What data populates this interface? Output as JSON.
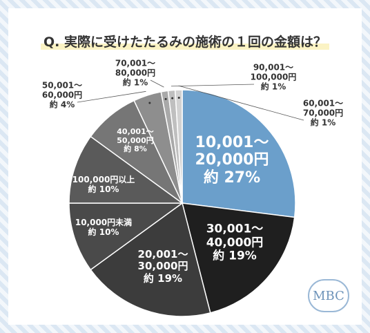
{
  "chart_data": {
    "type": "pie",
    "title": "Q. 実際に受けたたるみの施術の１回の金額は？",
    "categories": [
      "10,001～\n20,000円",
      "30,001～\n40,000円",
      "20,001～\n30,000円",
      "10,000円未満",
      "100,000円以上",
      "40,001～\n50,000円",
      "50,001～\n60,000円",
      "70,001～\n80,000円",
      "90,001～\n100,000円",
      "60,001～\n70,000円"
    ],
    "values": [
      27,
      19,
      19,
      10,
      10,
      8,
      4,
      1,
      1,
      1
    ],
    "value_labels": [
      "約 27%",
      "約 19%",
      "約 19%",
      "約 10%",
      "約 10%",
      "約 8%",
      "約 4%",
      "約 1%",
      "約 1%",
      "約 1%"
    ],
    "colors": [
      "#6b9fcb",
      "#1f1f1f",
      "#3c3c3c",
      "#4a4a4a",
      "#5a5a5a",
      "#767676",
      "#8e8e8e",
      "#a9a9a9",
      "#bfbfbf",
      "#d2d2d2"
    ],
    "logo": "MBC"
  }
}
